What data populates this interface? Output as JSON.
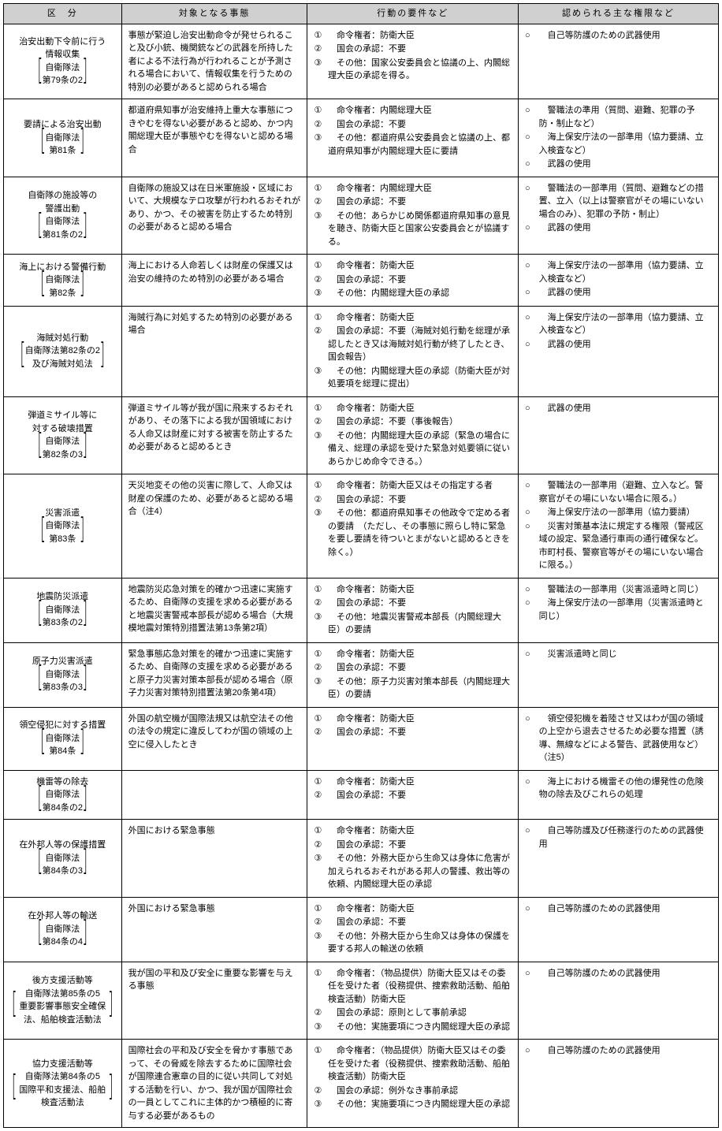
{
  "headers": {
    "category": "区　分",
    "situation": "対象となる事態",
    "requirements": "行動の要件など",
    "authorities": "認められる主な権限など"
  },
  "numMarks": [
    "①",
    "②",
    "③"
  ],
  "bulletMark": "○",
  "rows": [
    {
      "category": {
        "title": "治安出動下令前に行う\n情報収集",
        "law": "自衛隊法\n第79条の2"
      },
      "situation": "事態が緊迫し治安出動命令が発せられること及び小銃、機関銃などの武器を所持した者による不法行為が行われることが予測される場合において、情報収集を行うための特別の必要があると認められる場合",
      "requirements": [
        "命令権者：防衛大臣",
        "国会の承認：不要",
        "その他：国家公安委員会と協議の上、内閣総理大臣の承認を得る。"
      ],
      "authorities": [
        "自己等防護のための武器使用"
      ]
    },
    {
      "category": {
        "title": "要請による治安出動",
        "law": "自衛隊法\n第81条"
      },
      "situation": "都道府県知事が治安維持上重大な事態につきやむを得ない必要があると認め、かつ内閣総理大臣が事態やむを得ないと認める場合",
      "requirements": [
        "命令権者：内閣総理大臣",
        "国会の承認：不要",
        "その他：都道府県公安委員会と協議の上、都道府県知事が内閣総理大臣に要請"
      ],
      "authorities": [
        "警職法の準用（質問、避難、犯罪の予防・制止など）",
        "海上保安庁法の一部準用（協力要請、立入検査など）",
        "武器の使用"
      ]
    },
    {
      "category": {
        "title": "自衛隊の施設等の\n警護出動",
        "law": "自衛隊法\n第81条の2"
      },
      "situation": "自衛隊の施設又は在日米軍施設・区域において、大規模なテロ攻撃が行われるおそれがあり、かつ、その被害を防止するため特別の必要があると認める場合",
      "requirements": [
        "命令権者：内閣総理大臣",
        "国会の承認：不要",
        "その他：あらかじめ関係都道府県知事の意見を聴き、防衛大臣と国家公安委員会とが協議する。"
      ],
      "authorities": [
        "警職法の一部準用（質問、避難などの措置、立入（以上は警察官がその場にいない場合のみ）、犯罪の予防・制止）",
        "武器の使用"
      ]
    },
    {
      "category": {
        "title": "海上における警備行動",
        "law": "自衛隊法\n第82条"
      },
      "situation": "海上における人命若しくは財産の保護又は治安の維持のため特別の必要がある場合",
      "requirements": [
        "命令権者：防衛大臣",
        "国会の承認：不要",
        "その他：内閣総理大臣の承認"
      ],
      "authorities": [
        "海上保安庁法の一部準用（協力要請、立入検査など）",
        "武器の使用"
      ]
    },
    {
      "category": {
        "title": "海賊対処行動",
        "law": "自衛隊法第82条の2\n及び海賊対処法"
      },
      "situation": "海賊行為に対処するため特別の必要がある場合",
      "requirements": [
        "命令権者：防衛大臣",
        "国会の承認：不要（海賊対処行動を総理が承認したとき又は海賊対処行動が終了したとき、国会報告）",
        "その他：内閣総理大臣の承認（防衛大臣が対処要項を総理に提出）"
      ],
      "authorities": [
        "海上保安庁法の一部準用（協力要請、立入検査など）",
        "武器の使用"
      ]
    },
    {
      "category": {
        "title": "弾道ミサイル等に\n対する破壊措置",
        "law": "自衛隊法\n第82条の3"
      },
      "situation": "弾道ミサイル等が我が国に飛来するおそれがあり、その落下による我が国領域における人命又は財産に対する被害を防止するため必要があると認めるとき",
      "requirements": [
        "命令権者：防衛大臣",
        "国会の承認：不要（事後報告）",
        "その他：内閣総理大臣の承認（緊急の場合に備え、総理の承認を受けた緊急対処要領に従いあらかじめ命令できる。）"
      ],
      "authorities": [
        "武器の使用"
      ]
    },
    {
      "category": {
        "title": "災害派遣",
        "law": "自衛隊法\n第83条"
      },
      "situation": "天災地変その他の災害に際して、人命又は財産の保護のため、必要があると認める場合（注4）",
      "requirements": [
        "命令権者：防衛大臣又はその指定する者",
        "国会の承認：不要",
        "その他：都道府県知事その他政令で定める者の要請　（ただし、その事態に照らし特に緊急を要し要請を待ついとまがないと認めるときを除く。）"
      ],
      "authorities": [
        "警職法の一部準用（避難、立入など。警察官がその場にいない場合に限る。）",
        "海上保安庁法の一部準用（協力要請）",
        "災害対策基本法に規定する権限（警戒区域の設定、緊急通行車両の通行確保など。市町村長、警察官等がその場にいない場合に限る。）"
      ]
    },
    {
      "category": {
        "title": "地震防災派遣",
        "law": "自衛隊法\n第83条の2"
      },
      "situation": "地震防災応急対策を的確かつ迅速に実施するため、自衛隊の支援を求める必要があると地震災害警戒本部長が認める場合（大規模地震対策特別措置法第13条第2項）",
      "requirements": [
        "命令権者：防衛大臣",
        "国会の承認：不要",
        "その他：地震災害警戒本部長（内閣総理大臣）の要請"
      ],
      "authorities": [
        "警職法の一部準用（災害派遣時と同じ）",
        "海上保安庁法の一部準用（災害派遣時と同じ）"
      ]
    },
    {
      "category": {
        "title": "原子力災害派遣",
        "law": "自衛隊法\n第83条の3"
      },
      "situation": "緊急事態応急対策を的確かつ迅速に実施するため、自衛隊の支援を求める必要があると原子力災害対策本部長が認める場合（原子力災害対策特別措置法第20条第4項）",
      "requirements": [
        "命令権者：防衛大臣",
        "国会の承認：不要",
        "その他：原子力災害対策本部長（内閣総理大臣）の要請"
      ],
      "authorities": [
        "災害派遣時と同じ"
      ]
    },
    {
      "category": {
        "title": "領空侵犯に対する措置",
        "law": "自衛隊法\n第84条"
      },
      "situation": "外国の航空機が国際法規又は航空法その他の法令の規定に違反してわが国の領域の上空に侵入したとき",
      "requirements": [
        "命令権者：防衛大臣",
        "国会の承認：不要"
      ],
      "authorities": [
        "領空侵犯機を着陸させ又はわが国の領域の上空から退去させるため必要な措置（誘導、無線などによる警告、武器使用など）（注5）"
      ]
    },
    {
      "category": {
        "title": "機雷等の除去",
        "law": "自衛隊法\n第84条の2"
      },
      "situation": "",
      "requirements": [
        "命令権者：防衛大臣",
        "国会の承認：不要"
      ],
      "authorities": [
        "海上における機雷その他の爆発性の危険物の除去及びこれらの処理"
      ]
    },
    {
      "category": {
        "title": "在外邦人等の保護措置",
        "law": "自衛隊法\n第84条の3"
      },
      "situation": "外国における緊急事態",
      "requirements": [
        "命令権者：防衛大臣",
        "国会の承認：不要",
        "その他：外務大臣から生命又は身体に危害が加えられるおそれがある邦人の警護、救出等の依頼、内閣総理大臣の承認"
      ],
      "authorities": [
        "自己等防護及び任務遂行のための武器使用"
      ]
    },
    {
      "category": {
        "title": "在外邦人等の輸送",
        "law": "自衛隊法\n第84条の4"
      },
      "situation": "外国における緊急事態",
      "requirements": [
        "命令権者：防衛大臣",
        "国会の承認：不要",
        "その他：外務大臣から生命又は身体の保護を要する邦人の輸送の依頼"
      ],
      "authorities": [
        "自己等防護のための武器使用"
      ]
    },
    {
      "category": {
        "title": "後方支援活動等",
        "law": "自衛隊法第85条の5\n重要影響事態安全確保法、船舶検査活動法"
      },
      "situation": "我が国の平和及び安全に重要な影響を与える事態",
      "requirements": [
        "命令権者：（物品提供）防衛大臣又はその委任を受けた者（役務提供、捜索救助活動、船舶検査活動）防衛大臣",
        "国会の承認：原則として事前承認",
        "その他：実施要項につき内閣総理大臣の承認"
      ],
      "authorities": [
        "自己等防護のための武器使用"
      ]
    },
    {
      "category": {
        "title": "協力支援活動等",
        "law": "自衛隊法第84条の5\n国際平和支援法、船舶検査活動法"
      },
      "situation": "国際社会の平和及び安全を脅かす事態であって、その脅威を除去するために国際社会が国際連合憲章の目的に従い共同して対処する活動を行い、かつ、我が国が国際社会の一員としてこれに主体的かつ積極的に寄与する必要があるもの",
      "requirements": [
        "命令権者：（物品提供）防衛大臣又はその委任を受けた者（役務提供、捜索救助活動、船舶検査活動）防衛大臣",
        "国会の承認：例外なき事前承認",
        "その他：実施要項につき内閣総理大臣の承認"
      ],
      "authorities": [
        "自己等防護のための武器使用"
      ]
    }
  ]
}
